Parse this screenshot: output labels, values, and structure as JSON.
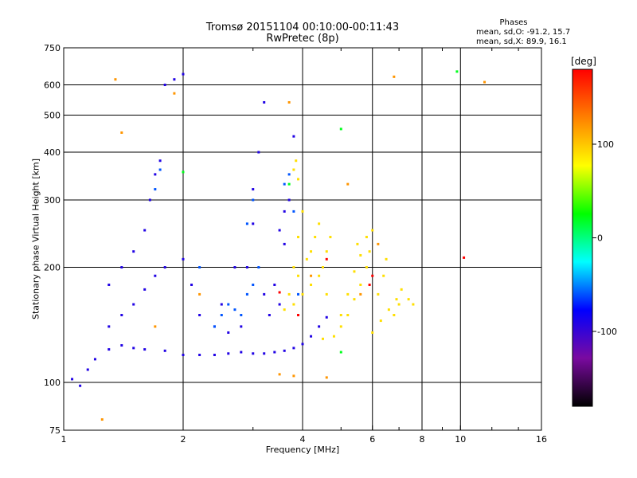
{
  "header": {
    "title_line1": "Tromsø 20151104 00:10:00-00:11:43",
    "title_line2": "RwPretec (8p)"
  },
  "stats": {
    "heading": "Phases",
    "line_o": "mean, sd,O: -91.2, 15.7",
    "line_x": "mean, sd,X:  89.9, 16.1"
  },
  "colorbar": {
    "unit": "[deg]",
    "ticks": [
      {
        "value": 100,
        "label": "100"
      },
      {
        "value": 0,
        "label": "0"
      },
      {
        "value": -100,
        "label": "-100"
      }
    ],
    "range": [
      -180,
      180
    ],
    "stops": [
      "#000000",
      "#7a0aa0",
      "#0000ff",
      "#00ffff",
      "#00ff00",
      "#ffff00",
      "#ff8000",
      "#ff0000"
    ]
  },
  "chart_data": {
    "type": "scatter",
    "title": "Tromsø 20151104 00:10:00-00:11:43",
    "subtitle": "RwPretec (8p)",
    "xlabel": "Frequency [MHz]",
    "ylabel": "Stationary phase Virtual Height [km]",
    "xscale": "log",
    "yscale": "log",
    "xlim": [
      1,
      16
    ],
    "ylim": [
      75,
      750
    ],
    "xticks": [
      1,
      2,
      4,
      6,
      8,
      10,
      16
    ],
    "yticks": [
      75,
      100,
      200,
      300,
      400,
      500,
      600,
      750
    ],
    "xgrid": [
      2,
      4,
      6,
      8,
      10
    ],
    "ygrid": [
      100,
      200,
      300,
      400,
      500,
      600
    ],
    "color_variable": "phase [deg]",
    "series": [
      {
        "mode": "O",
        "phase": -91.2,
        "points": [
          [
            1.05,
            102
          ],
          [
            1.1,
            98
          ],
          [
            1.15,
            108
          ],
          [
            1.2,
            115
          ],
          [
            1.3,
            122
          ],
          [
            1.4,
            125
          ],
          [
            1.5,
            123
          ],
          [
            1.6,
            122
          ],
          [
            1.8,
            121
          ],
          [
            2.0,
            118
          ],
          [
            2.2,
            118
          ],
          [
            2.4,
            118
          ],
          [
            2.6,
            119
          ],
          [
            2.8,
            120
          ],
          [
            3.0,
            119
          ],
          [
            3.2,
            119
          ],
          [
            3.4,
            120
          ],
          [
            3.6,
            121
          ],
          [
            3.8,
            123
          ],
          [
            4.0,
            126
          ],
          [
            4.2,
            132
          ],
          [
            4.4,
            140
          ],
          [
            4.6,
            148
          ],
          [
            1.3,
            140
          ],
          [
            1.4,
            150
          ],
          [
            1.5,
            160
          ],
          [
            1.6,
            175
          ],
          [
            1.7,
            190
          ],
          [
            1.8,
            200
          ],
          [
            1.6,
            250
          ],
          [
            1.65,
            300
          ],
          [
            1.7,
            350
          ],
          [
            1.75,
            380
          ],
          [
            2.0,
            210
          ],
          [
            2.1,
            180
          ],
          [
            2.2,
            150
          ],
          [
            2.4,
            140
          ],
          [
            2.6,
            135
          ],
          [
            2.8,
            140
          ],
          [
            2.9,
            200
          ],
          [
            3.0,
            260
          ],
          [
            3.0,
            320
          ],
          [
            3.1,
            400
          ],
          [
            3.2,
            170
          ],
          [
            3.4,
            180
          ],
          [
            3.5,
            250
          ],
          [
            3.6,
            280
          ],
          [
            3.7,
            300
          ],
          [
            3.6,
            230
          ],
          [
            1.8,
            600
          ],
          [
            1.9,
            620
          ],
          [
            2.0,
            640
          ],
          [
            3.2,
            540
          ],
          [
            3.8,
            440
          ],
          [
            1.3,
            180
          ],
          [
            1.4,
            200
          ],
          [
            1.5,
            220
          ],
          [
            2.5,
            160
          ],
          [
            2.7,
            200
          ],
          [
            3.3,
            150
          ],
          [
            3.5,
            160
          ]
        ]
      },
      {
        "mode": "O",
        "phase": -60,
        "points": [
          [
            2.6,
            160
          ],
          [
            2.7,
            155
          ],
          [
            2.8,
            150
          ],
          [
            2.9,
            170
          ],
          [
            3.0,
            180
          ],
          [
            3.1,
            200
          ],
          [
            2.9,
            260
          ],
          [
            3.0,
            300
          ],
          [
            3.6,
            330
          ],
          [
            3.7,
            350
          ],
          [
            3.8,
            280
          ],
          [
            2.4,
            140
          ],
          [
            2.5,
            150
          ],
          [
            1.7,
            320
          ],
          [
            1.75,
            360
          ],
          [
            2.2,
            200
          ],
          [
            3.9,
            170
          ]
        ]
      },
      {
        "mode": "X",
        "phase": 89.9,
        "points": [
          [
            3.6,
            155
          ],
          [
            3.8,
            160
          ],
          [
            4.0,
            170
          ],
          [
            4.2,
            180
          ],
          [
            4.4,
            190
          ],
          [
            4.5,
            200
          ],
          [
            4.6,
            220
          ],
          [
            4.7,
            240
          ],
          [
            3.7,
            170
          ],
          [
            3.9,
            190
          ],
          [
            4.1,
            210
          ],
          [
            4.3,
            240
          ],
          [
            4.4,
            260
          ],
          [
            3.8,
            200
          ],
          [
            3.9,
            240
          ],
          [
            4.0,
            280
          ],
          [
            4.5,
            130
          ],
          [
            4.8,
            132
          ],
          [
            5.0,
            140
          ],
          [
            5.2,
            150
          ],
          [
            5.4,
            165
          ],
          [
            5.6,
            180
          ],
          [
            5.8,
            200
          ],
          [
            5.9,
            220
          ],
          [
            5.0,
            150
          ],
          [
            5.2,
            170
          ],
          [
            5.4,
            195
          ],
          [
            5.6,
            215
          ],
          [
            5.5,
            230
          ],
          [
            6.0,
            135
          ],
          [
            6.3,
            145
          ],
          [
            6.6,
            155
          ],
          [
            6.9,
            165
          ],
          [
            7.1,
            175
          ],
          [
            6.2,
            170
          ],
          [
            6.4,
            190
          ],
          [
            6.5,
            210
          ],
          [
            7.4,
            165
          ],
          [
            7.6,
            160
          ],
          [
            3.8,
            360
          ],
          [
            3.85,
            380
          ],
          [
            3.9,
            340
          ],
          [
            4.2,
            220
          ],
          [
            4.6,
            170
          ],
          [
            5.8,
            240
          ],
          [
            6.0,
            250
          ],
          [
            6.8,
            150
          ],
          [
            7.0,
            160
          ]
        ]
      },
      {
        "mode": "X",
        "phase": 120,
        "points": [
          [
            1.35,
            620
          ],
          [
            1.4,
            450
          ],
          [
            1.9,
            570
          ],
          [
            3.7,
            540
          ],
          [
            5.2,
            330
          ],
          [
            6.8,
            630
          ],
          [
            11.5,
            610
          ],
          [
            1.25,
            80
          ],
          [
            3.5,
            105
          ],
          [
            3.8,
            104
          ],
          [
            4.6,
            103
          ],
          [
            4.2,
            190
          ],
          [
            5.6,
            170
          ],
          [
            1.7,
            140
          ],
          [
            2.2,
            170
          ],
          [
            6.2,
            230
          ]
        ]
      },
      {
        "mode": "X",
        "phase": 180,
        "points": [
          [
            3.5,
            172
          ],
          [
            4.6,
            210
          ],
          [
            5.9,
            180
          ],
          [
            10.2,
            212
          ],
          [
            6.0,
            190
          ],
          [
            3.9,
            150
          ]
        ]
      },
      {
        "mode": "X",
        "phase": 20,
        "points": [
          [
            9.8,
            650
          ],
          [
            2.0,
            355
          ],
          [
            5.0,
            460
          ],
          [
            5.0,
            120
          ],
          [
            3.7,
            330
          ]
        ]
      }
    ]
  }
}
